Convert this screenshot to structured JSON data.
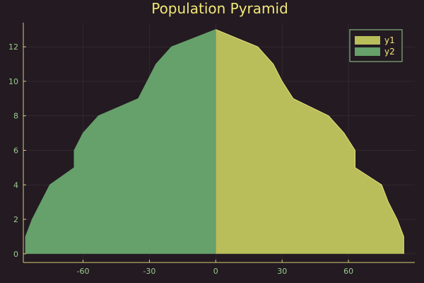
{
  "colors": {
    "background": "#231a22",
    "text": "#f1e778",
    "axis": "#d8cf74",
    "tick_label": "#9acd8c",
    "grid": "#3a3038",
    "series_y1": "#b9bd5a",
    "series_y2": "#66a06a",
    "outline_y1": "#e6e27a"
  },
  "chart_data": {
    "type": "area",
    "title": "Population Pyramid",
    "xlabel": "",
    "ylabel": "",
    "xlim": [
      -87,
      90
    ],
    "ylim": [
      -0.5,
      13.4
    ],
    "xticks": [
      -60,
      -30,
      0,
      30,
      60
    ],
    "yticks": [
      0,
      2,
      4,
      6,
      8,
      10,
      12
    ],
    "grid": true,
    "legend_position": "top-right",
    "orientation": "horizontal",
    "y": [
      0,
      1,
      2,
      3,
      4,
      5,
      6,
      7,
      8,
      9,
      10,
      11,
      12,
      13
    ],
    "series": [
      {
        "name": "y1",
        "color": "#b9bd5a",
        "values": [
          85,
          85,
          82,
          78,
          75,
          63,
          63,
          58,
          51,
          35,
          30,
          26,
          19,
          0
        ]
      },
      {
        "name": "y2",
        "color": "#66a06a",
        "values": [
          -86,
          -86,
          -83,
          -79,
          -75,
          -64,
          -64,
          -60,
          -53,
          -35,
          -31,
          -27,
          -20,
          0
        ]
      }
    ]
  }
}
